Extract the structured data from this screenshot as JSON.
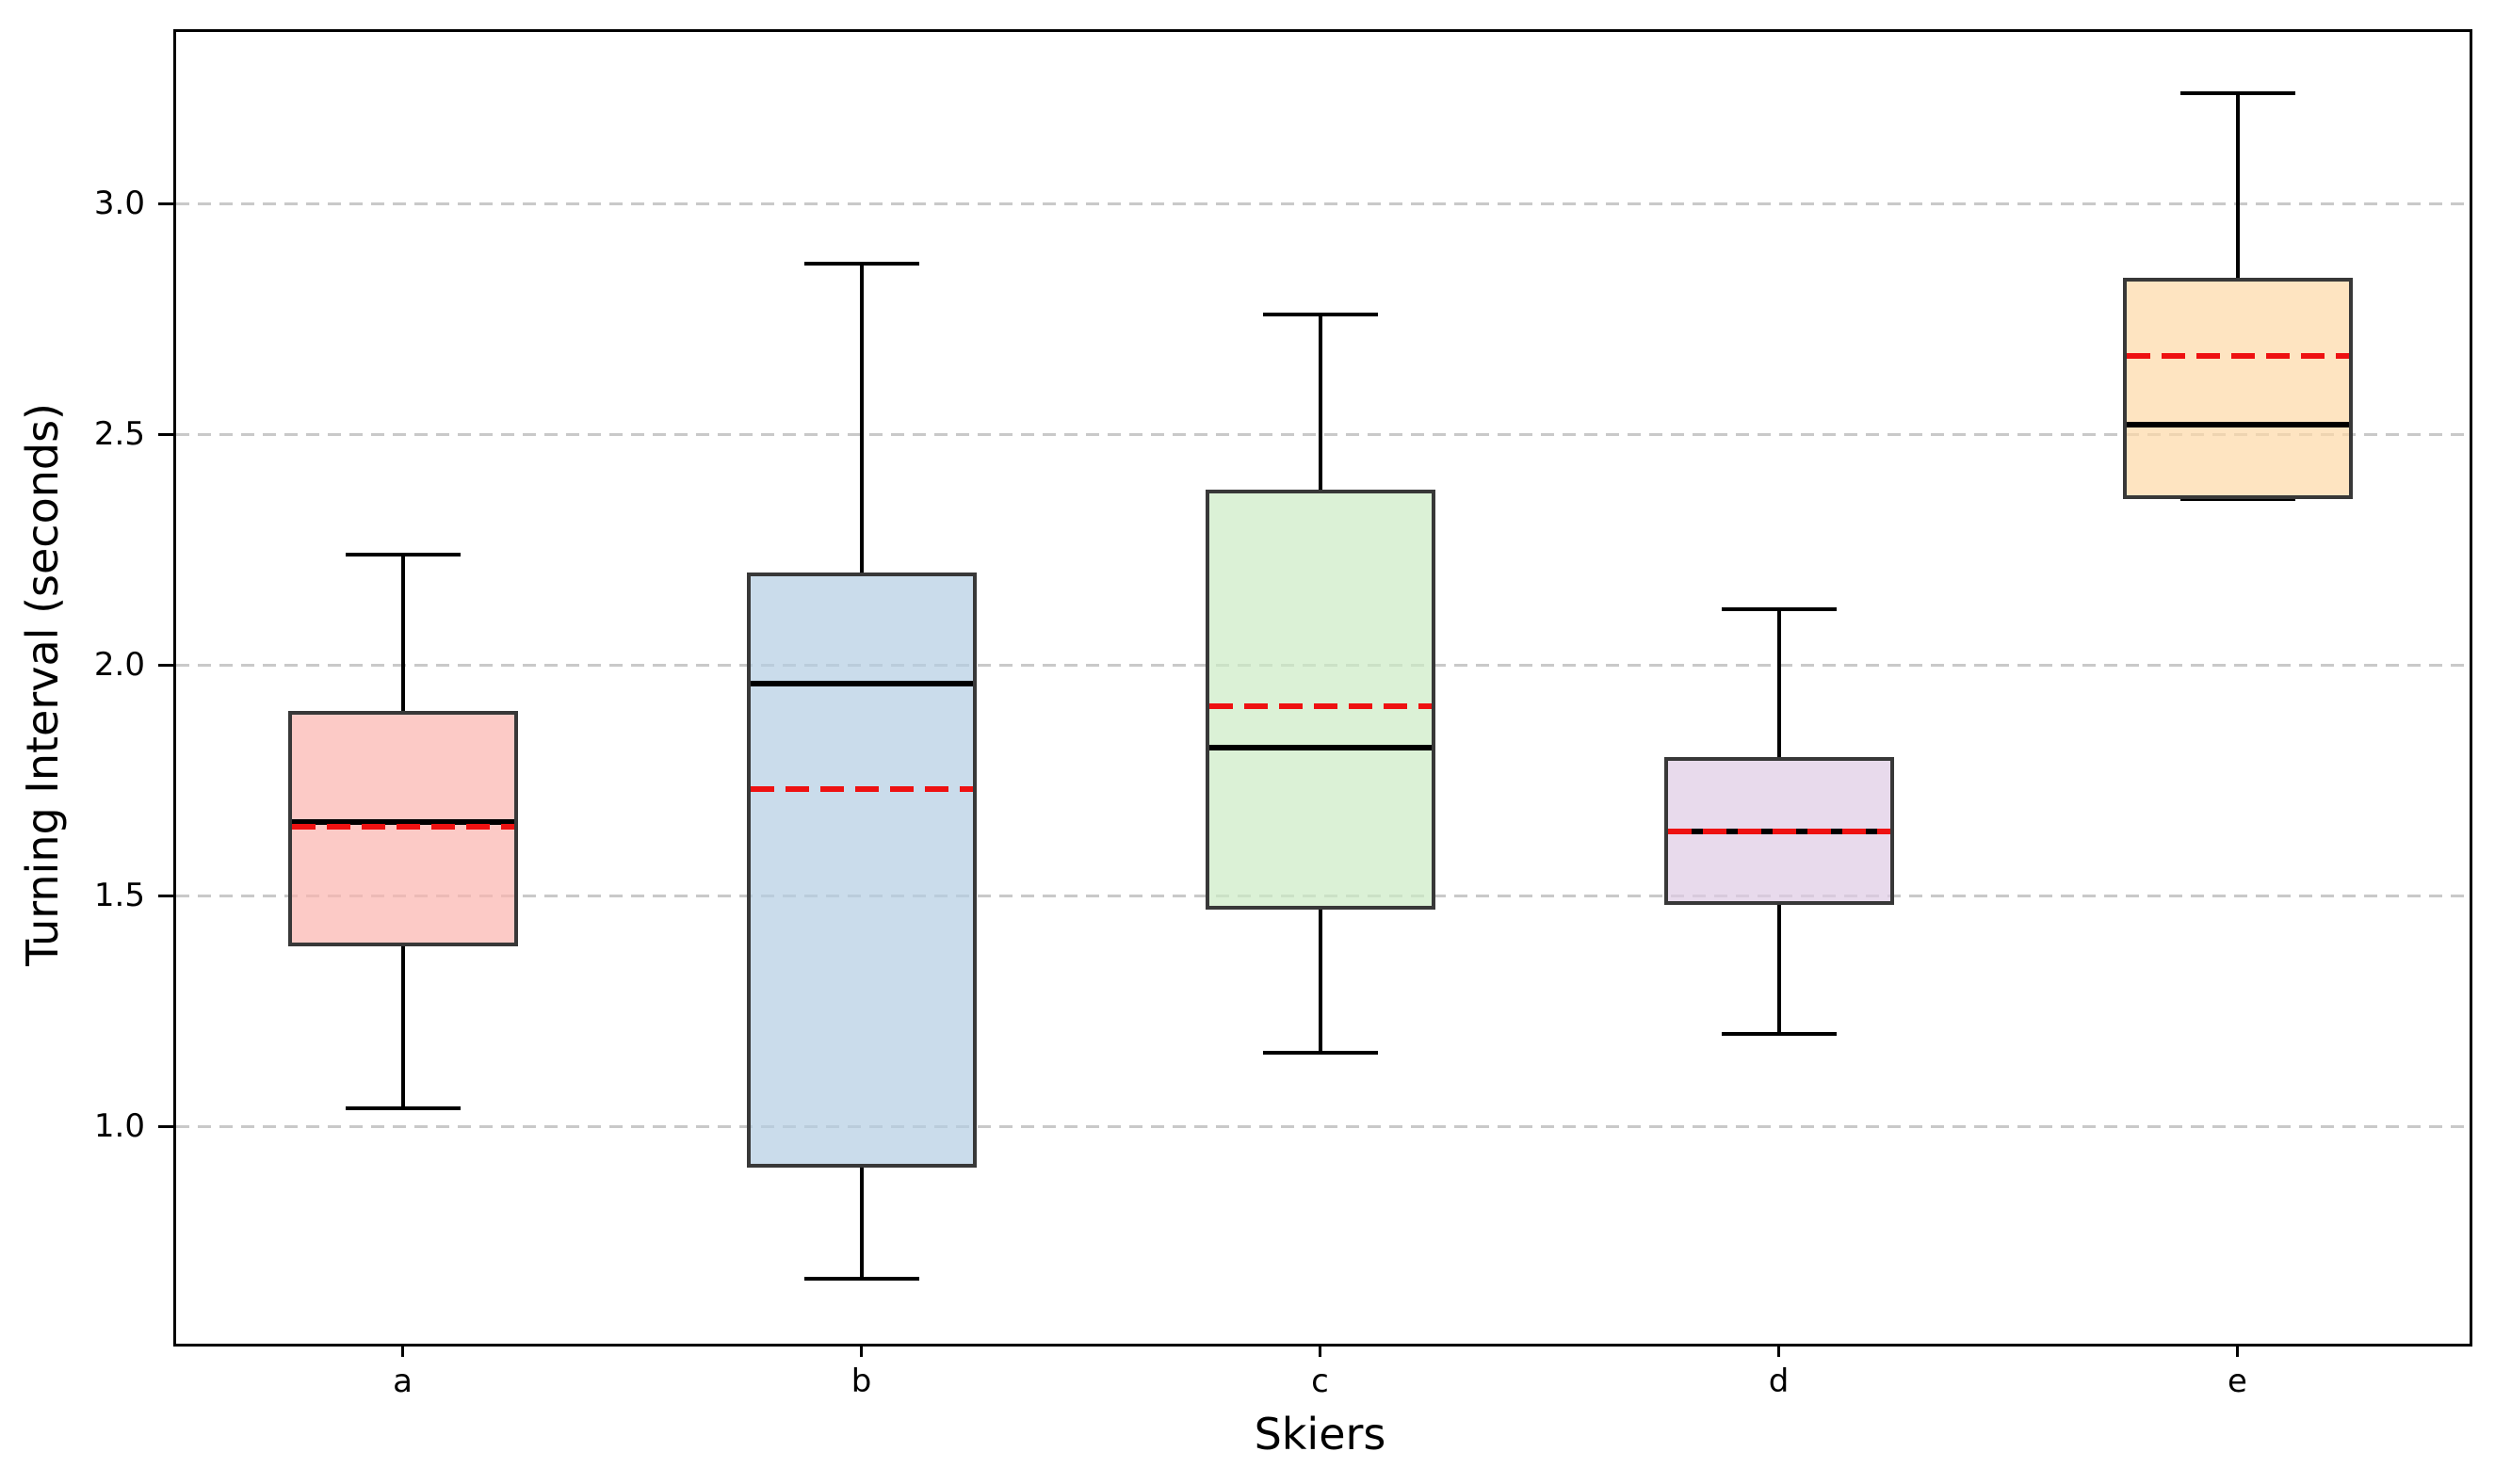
{
  "chart_data": {
    "type": "boxplot",
    "title": "",
    "xlabel": "Skiers",
    "ylabel": "Turning Interval (seconds)",
    "categories": [
      "a",
      "b",
      "c",
      "d",
      "e"
    ],
    "ytick_labels": [
      "1.0",
      "1.5",
      "2.0",
      "2.5",
      "3.0"
    ],
    "yticks": [
      1.0,
      1.5,
      2.0,
      2.5,
      3.0
    ],
    "ylim": [
      0.535,
      3.378
    ],
    "xlim": [
      0.5,
      5.5
    ],
    "grid": "horizontal-dashed",
    "legend_position": "none",
    "series": [
      {
        "category": "a",
        "whisker_low": 1.04,
        "q1": 1.39,
        "median": 1.66,
        "mean": 1.65,
        "q3": 1.9,
        "whisker_high": 2.24,
        "fill_color": "#fbb4ae"
      },
      {
        "category": "b",
        "whisker_low": 0.67,
        "q1": 0.91,
        "median": 1.96,
        "mean": 1.73,
        "q3": 2.2,
        "whisker_high": 2.87,
        "fill_color": "#b3cde3"
      },
      {
        "category": "c",
        "whisker_low": 1.16,
        "q1": 1.47,
        "median": 1.82,
        "mean": 1.91,
        "q3": 2.38,
        "whisker_high": 2.76,
        "fill_color": "#ccebc5"
      },
      {
        "category": "d",
        "whisker_low": 1.2,
        "q1": 1.48,
        "median": 1.64,
        "mean": 1.64,
        "q3": 1.8,
        "whisker_high": 2.12,
        "fill_color": "#decbe4"
      },
      {
        "category": "e",
        "whisker_low": 2.36,
        "q1": 2.36,
        "median": 2.52,
        "mean": 2.67,
        "q3": 2.84,
        "whisker_high": 3.24,
        "fill_color": "#fed9a6"
      }
    ],
    "styles": {
      "fill_alpha": 0.7,
      "box_edge_color": "#383838",
      "median_color": "#000000",
      "mean_color": "#ee1111",
      "mean_line_style": "dashed",
      "whisker_color": "#000000",
      "grid_color": "#c9c9c9",
      "axis_color": "#000000",
      "background_color": "#ffffff"
    }
  }
}
